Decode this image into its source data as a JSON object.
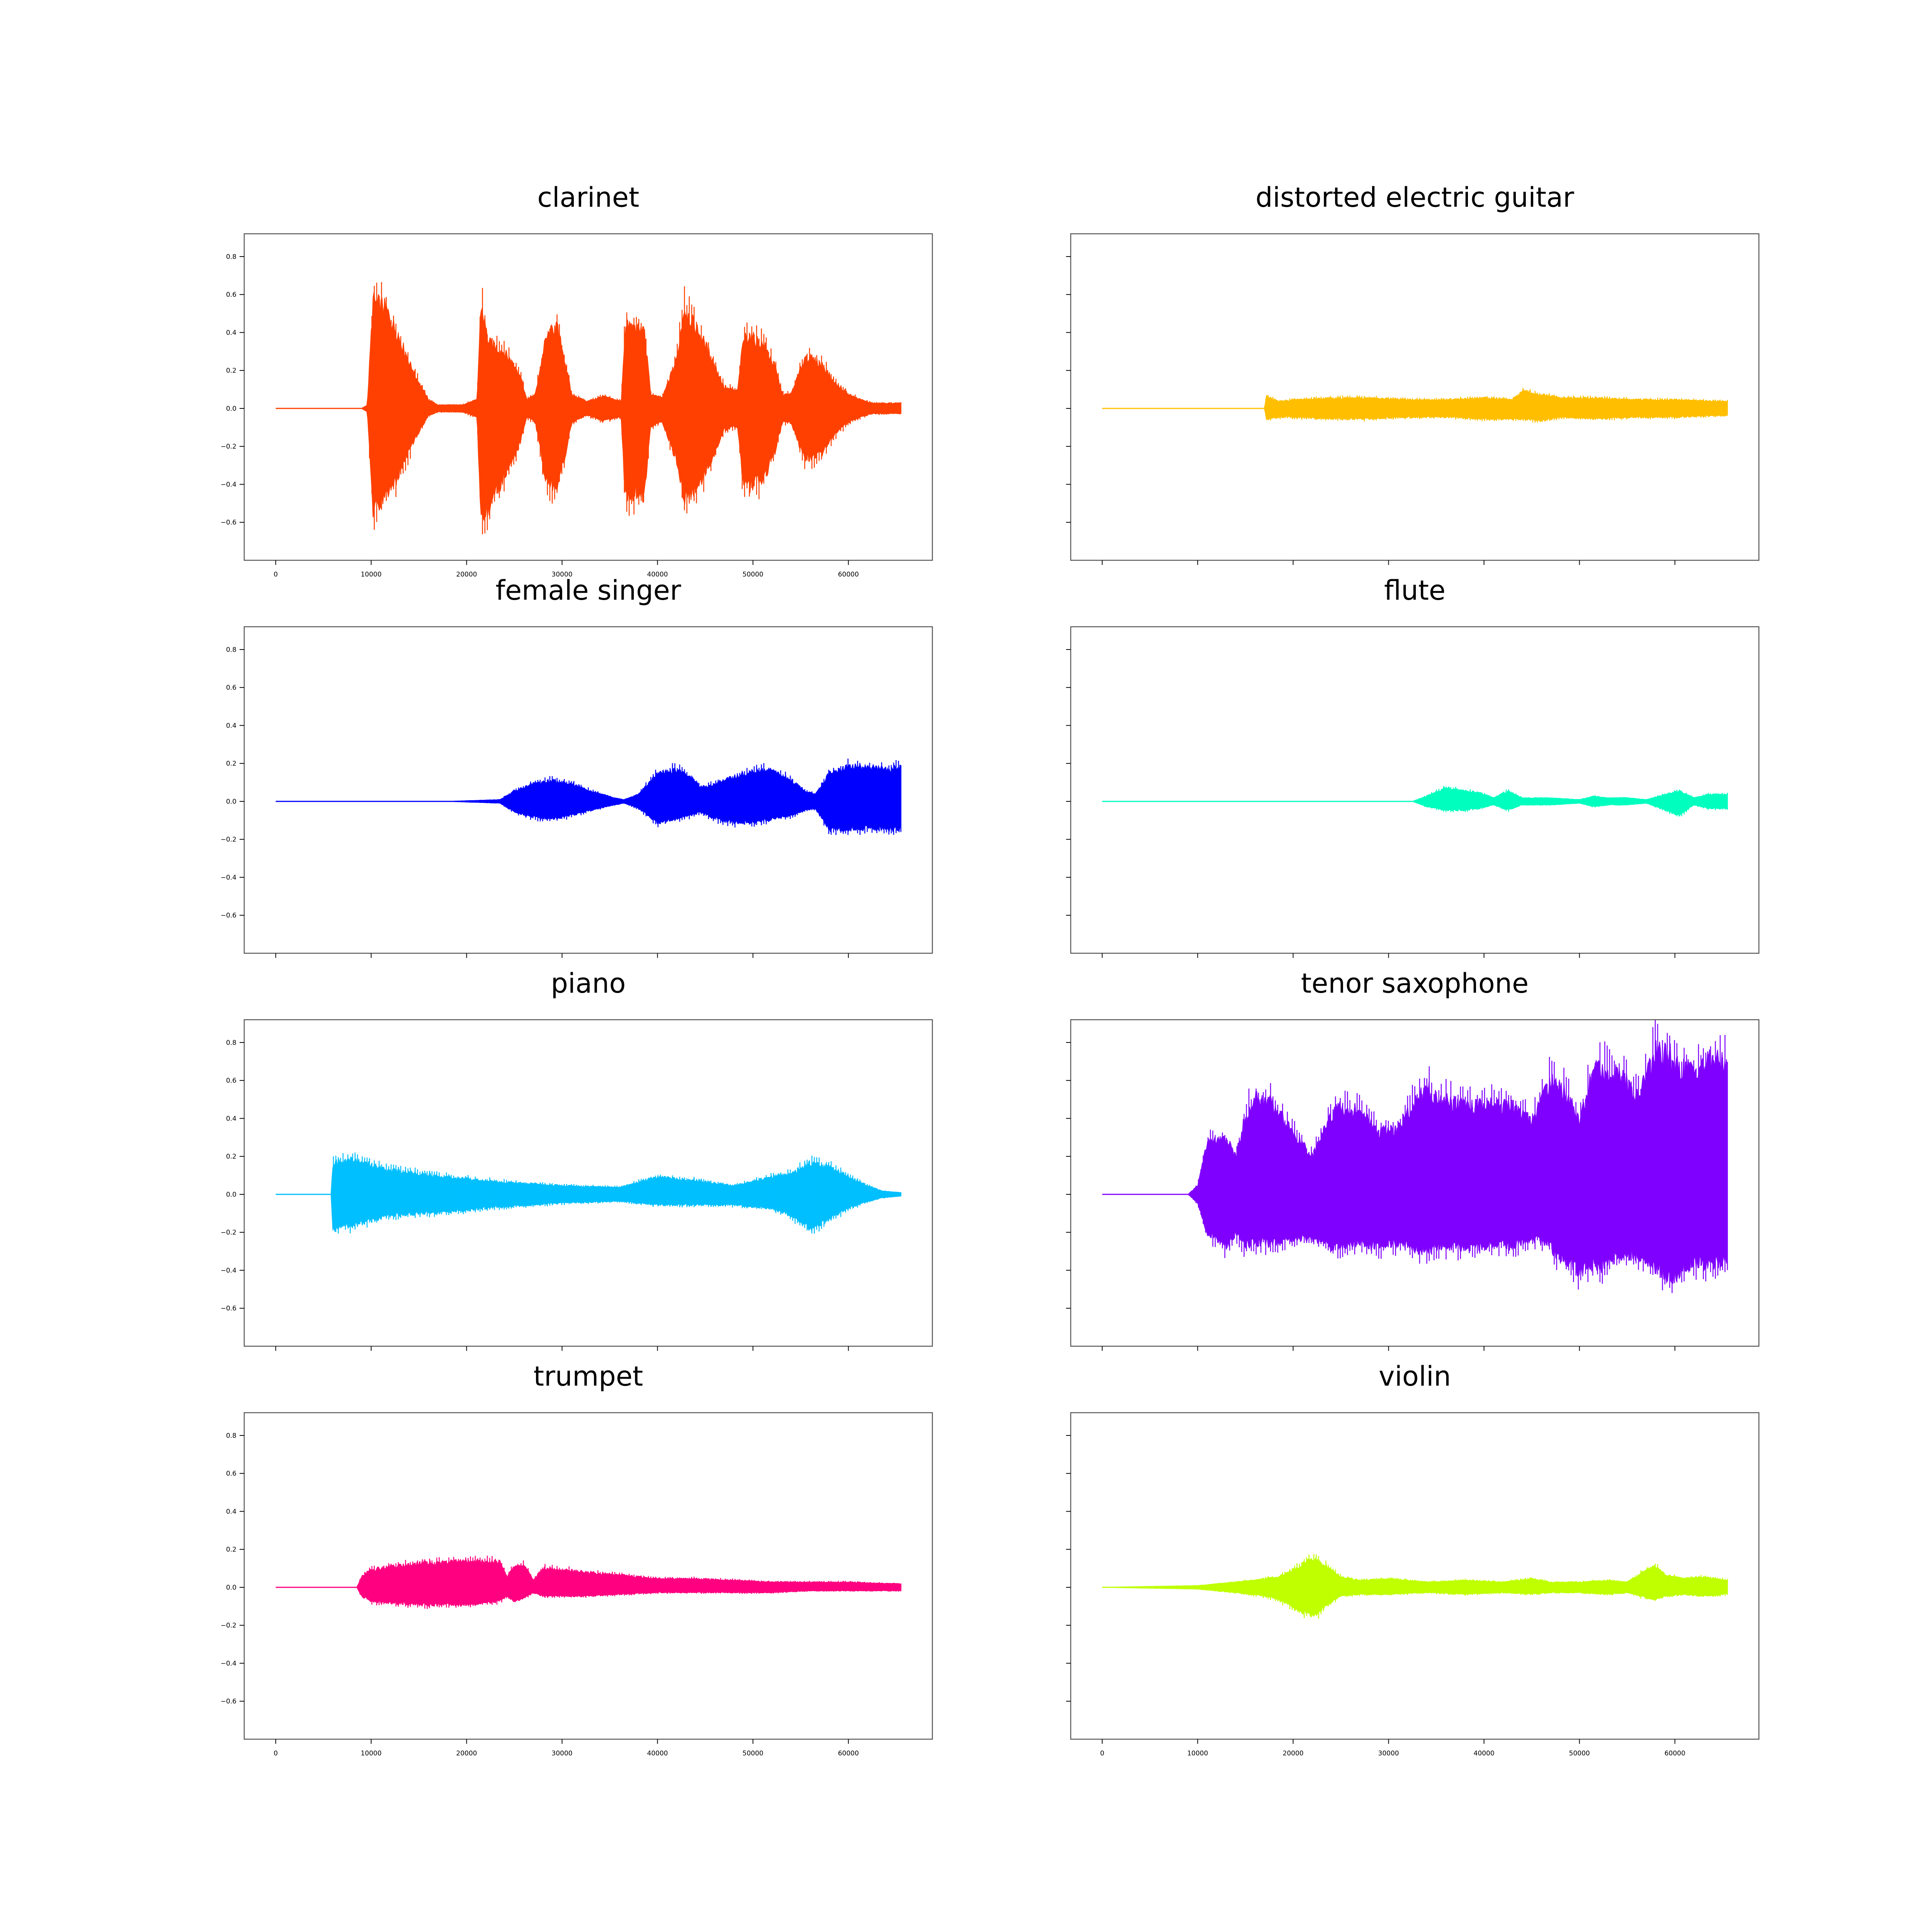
{
  "figure": {
    "background": "#ffffff",
    "layout": "4 rows x 2 columns, shared x and y axes",
    "tick_labels_shown": "y on left column, x on bottom row"
  },
  "chart_data": [
    {
      "type": "line",
      "title": "clarinet",
      "color": "#ff4000",
      "xlim": [
        -3300,
        68800
      ],
      "ylim": [
        -0.8,
        0.92
      ],
      "xticks": [
        0,
        10000,
        20000,
        30000,
        40000,
        50000,
        60000
      ],
      "yticks": [
        -0.6,
        -0.4,
        -0.2,
        0.0,
        0.2,
        0.4,
        0.6,
        0.8
      ],
      "xtick_labels": [
        "0",
        "10000",
        "20000",
        "30000",
        "40000",
        "50000",
        "60000"
      ],
      "ytick_labels": [
        "−0.6",
        "−0.4",
        "−0.2",
        "0.0",
        "0.2",
        "0.4",
        "0.6",
        "0.8"
      ],
      "envelope": {
        "x": [
          0,
          9000,
          9600,
          10200,
          11500,
          13000,
          14500,
          16000,
          17000,
          19500,
          21100,
          21500,
          22300,
          24000,
          25600,
          26300,
          27200,
          28300,
          29400,
          30200,
          31000,
          32600,
          34300,
          36200,
          36600,
          37000,
          38000,
          38600,
          39300,
          40500,
          42000,
          42800,
          43600,
          44500,
          45600,
          47000,
          48400,
          49000,
          49600,
          51200,
          52300,
          53100,
          54000,
          55500,
          57300,
          58500,
          59200,
          60000,
          61300,
          62500,
          64000,
          65500
        ],
        "upper": [
          0.0,
          0.0,
          0.02,
          0.62,
          0.58,
          0.4,
          0.2,
          0.05,
          0.02,
          0.02,
          0.05,
          0.6,
          0.38,
          0.32,
          0.2,
          0.05,
          0.08,
          0.4,
          0.48,
          0.3,
          0.08,
          0.04,
          0.07,
          0.04,
          0.45,
          0.48,
          0.45,
          0.45,
          0.08,
          0.06,
          0.28,
          0.58,
          0.5,
          0.42,
          0.3,
          0.12,
          0.1,
          0.4,
          0.42,
          0.36,
          0.24,
          0.08,
          0.08,
          0.3,
          0.25,
          0.15,
          0.12,
          0.08,
          0.05,
          0.03,
          0.03,
          0.03
        ],
        "lower": [
          0.0,
          0.0,
          -0.02,
          -0.6,
          -0.5,
          -0.38,
          -0.18,
          -0.04,
          -0.02,
          -0.02,
          -0.05,
          -0.65,
          -0.58,
          -0.38,
          -0.2,
          -0.05,
          -0.08,
          -0.42,
          -0.45,
          -0.3,
          -0.08,
          -0.04,
          -0.07,
          -0.05,
          -0.5,
          -0.5,
          -0.5,
          -0.5,
          -0.1,
          -0.08,
          -0.3,
          -0.52,
          -0.48,
          -0.42,
          -0.3,
          -0.12,
          -0.1,
          -0.45,
          -0.45,
          -0.4,
          -0.25,
          -0.08,
          -0.08,
          -0.3,
          -0.25,
          -0.15,
          -0.12,
          -0.08,
          -0.05,
          -0.03,
          -0.03,
          -0.03
        ]
      }
    },
    {
      "type": "line",
      "title": "distorted electric guitar",
      "color": "#ffbf00",
      "xlim": [
        -3300,
        68800
      ],
      "ylim": [
        -0.8,
        0.92
      ],
      "xticks": [
        0,
        10000,
        20000,
        30000,
        40000,
        50000,
        60000
      ],
      "yticks": [
        -0.6,
        -0.4,
        -0.2,
        0.0,
        0.2,
        0.4,
        0.6,
        0.8
      ],
      "envelope": {
        "x": [
          0,
          17000,
          17200,
          18500,
          20000,
          24000,
          28000,
          32000,
          36000,
          40000,
          43000,
          44000,
          46000,
          48000,
          52000,
          56000,
          60000,
          65500
        ],
        "upper": [
          0.0,
          0.0,
          0.07,
          0.04,
          0.05,
          0.06,
          0.06,
          0.05,
          0.05,
          0.06,
          0.05,
          0.1,
          0.08,
          0.06,
          0.06,
          0.05,
          0.05,
          0.04
        ],
        "lower": [
          0.0,
          0.0,
          -0.06,
          -0.05,
          -0.05,
          -0.06,
          -0.06,
          -0.05,
          -0.05,
          -0.06,
          -0.06,
          -0.06,
          -0.07,
          -0.05,
          -0.06,
          -0.05,
          -0.05,
          -0.04
        ]
      }
    },
    {
      "type": "line",
      "title": "female singer",
      "color": "#0000ff",
      "xlim": [
        -3300,
        68800
      ],
      "ylim": [
        -0.8,
        0.92
      ],
      "xticks": [
        0,
        10000,
        20000,
        30000,
        40000,
        50000,
        60000
      ],
      "yticks": [
        -0.6,
        -0.4,
        -0.2,
        0.0,
        0.2,
        0.4,
        0.6,
        0.8
      ],
      "envelope": {
        "x": [
          0,
          18000,
          23500,
          25000,
          27000,
          29000,
          31000,
          33000,
          35500,
          36500,
          38000,
          40000,
          42000,
          43500,
          44500,
          46000,
          48000,
          50000,
          52000,
          54000,
          55500,
          56500,
          58000,
          60000,
          62000,
          64000,
          65500
        ],
        "upper": [
          0.0,
          0.0,
          0.01,
          0.06,
          0.1,
          0.12,
          0.1,
          0.06,
          0.02,
          0.01,
          0.04,
          0.16,
          0.18,
          0.14,
          0.08,
          0.1,
          0.14,
          0.17,
          0.18,
          0.12,
          0.06,
          0.04,
          0.16,
          0.2,
          0.2,
          0.18,
          0.2
        ],
        "lower": [
          0.0,
          0.0,
          -0.01,
          -0.06,
          -0.09,
          -0.1,
          -0.08,
          -0.05,
          -0.02,
          -0.01,
          -0.04,
          -0.12,
          -0.1,
          -0.08,
          -0.06,
          -0.1,
          -0.12,
          -0.12,
          -0.1,
          -0.08,
          -0.05,
          -0.04,
          -0.16,
          -0.16,
          -0.15,
          -0.16,
          -0.16
        ]
      }
    },
    {
      "type": "line",
      "title": "flute",
      "color": "#00ffbf",
      "xlim": [
        -3300,
        68800
      ],
      "ylim": [
        -0.8,
        0.92
      ],
      "xticks": [
        0,
        10000,
        20000,
        30000,
        40000,
        50000,
        60000
      ],
      "yticks": [
        -0.6,
        -0.4,
        -0.2,
        0.0,
        0.2,
        0.4,
        0.6,
        0.8
      ],
      "envelope": {
        "x": [
          0,
          32500,
          34000,
          36000,
          38000,
          39500,
          41000,
          42500,
          44000,
          47000,
          50000,
          51500,
          53000,
          55000,
          57000,
          59000,
          60500,
          62000,
          63500,
          65500
        ],
        "upper": [
          0.0,
          0.0,
          0.03,
          0.08,
          0.06,
          0.05,
          0.02,
          0.06,
          0.02,
          0.02,
          0.01,
          0.03,
          0.02,
          0.02,
          0.01,
          0.04,
          0.06,
          0.02,
          0.04,
          0.04
        ],
        "lower": [
          0.0,
          0.0,
          -0.03,
          -0.05,
          -0.05,
          -0.04,
          -0.02,
          -0.05,
          -0.02,
          -0.02,
          -0.01,
          -0.03,
          -0.02,
          -0.02,
          -0.01,
          -0.05,
          -0.08,
          -0.02,
          -0.04,
          -0.04
        ]
      }
    },
    {
      "type": "line",
      "title": "piano",
      "color": "#00bfff",
      "xlim": [
        -3300,
        68800
      ],
      "ylim": [
        -0.8,
        0.92
      ],
      "xticks": [
        0,
        10000,
        20000,
        30000,
        40000,
        50000,
        60000
      ],
      "yticks": [
        -0.6,
        -0.4,
        -0.2,
        0.0,
        0.2,
        0.4,
        0.6,
        0.8
      ],
      "envelope": {
        "x": [
          0,
          5800,
          6000,
          8000,
          12000,
          18000,
          24000,
          30000,
          36000,
          40000,
          44000,
          48000,
          52000,
          54000,
          56000,
          58000,
          60000,
          62000,
          63500,
          65500
        ],
        "upper": [
          0.0,
          0.0,
          0.18,
          0.2,
          0.14,
          0.1,
          0.07,
          0.05,
          0.04,
          0.1,
          0.08,
          0.05,
          0.1,
          0.12,
          0.18,
          0.16,
          0.1,
          0.05,
          0.02,
          0.01
        ],
        "lower": [
          0.0,
          0.0,
          -0.2,
          -0.18,
          -0.12,
          -0.1,
          -0.07,
          -0.05,
          -0.04,
          -0.06,
          -0.06,
          -0.06,
          -0.08,
          -0.12,
          -0.2,
          -0.14,
          -0.08,
          -0.04,
          -0.02,
          -0.01
        ]
      }
    },
    {
      "type": "line",
      "title": "tenor saxophone",
      "color": "#8000ff",
      "xlim": [
        -3300,
        68800
      ],
      "ylim": [
        -0.8,
        0.92
      ],
      "xticks": [
        0,
        10000,
        20000,
        30000,
        40000,
        50000,
        60000
      ],
      "yticks": [
        -0.6,
        -0.4,
        -0.2,
        0.0,
        0.2,
        0.4,
        0.6,
        0.8
      ],
      "envelope": {
        "x": [
          0,
          9000,
          10000,
          11000,
          13000,
          14000,
          15000,
          16000,
          18000,
          20000,
          22000,
          24000,
          25000,
          27000,
          29000,
          31000,
          33000,
          34000,
          35000,
          37000,
          39000,
          41000,
          43000,
          45000,
          47000,
          47500,
          48500,
          50000,
          51500,
          52500,
          54000,
          56000,
          58000,
          59500,
          60500,
          62000,
          64000,
          65500
        ],
        "upper": [
          0.0,
          0.0,
          0.05,
          0.3,
          0.32,
          0.22,
          0.45,
          0.55,
          0.52,
          0.35,
          0.22,
          0.45,
          0.5,
          0.48,
          0.35,
          0.38,
          0.55,
          0.62,
          0.55,
          0.52,
          0.5,
          0.52,
          0.5,
          0.42,
          0.65,
          0.62,
          0.6,
          0.42,
          0.72,
          0.7,
          0.72,
          0.55,
          0.82,
          0.8,
          0.72,
          0.72,
          0.78,
          0.75
        ],
        "lower": [
          0.0,
          0.0,
          -0.05,
          -0.22,
          -0.3,
          -0.22,
          -0.3,
          -0.28,
          -0.28,
          -0.25,
          -0.25,
          -0.3,
          -0.3,
          -0.28,
          -0.3,
          -0.28,
          -0.32,
          -0.32,
          -0.3,
          -0.3,
          -0.32,
          -0.28,
          -0.3,
          -0.25,
          -0.3,
          -0.35,
          -0.38,
          -0.45,
          -0.4,
          -0.42,
          -0.35,
          -0.35,
          -0.42,
          -0.48,
          -0.45,
          -0.4,
          -0.4,
          -0.38
        ]
      }
    },
    {
      "type": "line",
      "title": "trumpet",
      "color": "#ff0080",
      "xlim": [
        -3300,
        68800
      ],
      "ylim": [
        -0.8,
        0.92
      ],
      "xticks": [
        0,
        10000,
        20000,
        30000,
        40000,
        50000,
        60000
      ],
      "yticks": [
        -0.6,
        -0.4,
        -0.2,
        0.0,
        0.2,
        0.4,
        0.6,
        0.8
      ],
      "envelope": {
        "x": [
          0,
          8500,
          9000,
          10000,
          12000,
          16000,
          20000,
          23500,
          24200,
          25000,
          26000,
          27000,
          28000,
          32000,
          36000,
          40000,
          44000,
          48000,
          52000,
          56000,
          60000,
          65500
        ],
        "upper": [
          0.0,
          0.0,
          0.06,
          0.1,
          0.12,
          0.14,
          0.15,
          0.15,
          0.06,
          0.12,
          0.13,
          0.04,
          0.11,
          0.09,
          0.07,
          0.05,
          0.05,
          0.04,
          0.03,
          0.03,
          0.03,
          0.02
        ],
        "lower": [
          0.0,
          0.0,
          -0.05,
          -0.08,
          -0.09,
          -0.1,
          -0.1,
          -0.08,
          -0.05,
          -0.08,
          -0.06,
          -0.03,
          -0.05,
          -0.05,
          -0.04,
          -0.03,
          -0.03,
          -0.03,
          -0.03,
          -0.02,
          -0.02,
          -0.02
        ]
      }
    },
    {
      "type": "line",
      "title": "violin",
      "color": "#bfff00",
      "xlim": [
        -3300,
        68800
      ],
      "ylim": [
        -0.8,
        0.92
      ],
      "xticks": [
        0,
        10000,
        20000,
        30000,
        40000,
        50000,
        60000
      ],
      "yticks": [
        -0.6,
        -0.4,
        -0.2,
        0.0,
        0.2,
        0.4,
        0.6,
        0.8
      ],
      "xtick_labels": [
        "0",
        "10000",
        "20000",
        "30000",
        "40000",
        "50000",
        "60000"
      ],
      "envelope": {
        "x": [
          0,
          5000,
          10000,
          14000,
          17000,
          18500,
          20000,
          21500,
          22500,
          23500,
          25000,
          27000,
          30000,
          34000,
          38000,
          42000,
          45000,
          47000,
          50000,
          53000,
          55000,
          57000,
          58000,
          59000,
          61000,
          63000,
          65500
        ],
        "upper": [
          0.0,
          0.005,
          0.01,
          0.03,
          0.05,
          0.06,
          0.1,
          0.15,
          0.16,
          0.12,
          0.06,
          0.04,
          0.05,
          0.03,
          0.04,
          0.03,
          0.05,
          0.03,
          0.03,
          0.04,
          0.03,
          0.1,
          0.12,
          0.07,
          0.05,
          0.06,
          0.04
        ],
        "lower": [
          0.0,
          -0.005,
          -0.01,
          -0.03,
          -0.05,
          -0.07,
          -0.12,
          -0.15,
          -0.16,
          -0.1,
          -0.05,
          -0.04,
          -0.04,
          -0.03,
          -0.04,
          -0.03,
          -0.04,
          -0.03,
          -0.03,
          -0.04,
          -0.03,
          -0.06,
          -0.07,
          -0.05,
          -0.04,
          -0.05,
          -0.04
        ]
      }
    }
  ]
}
